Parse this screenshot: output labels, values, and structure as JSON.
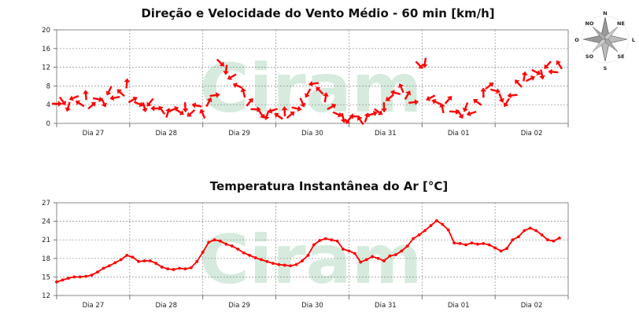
{
  "watermark": "Ciram",
  "compass": {
    "n": "N",
    "ne": "NE",
    "l": "L",
    "se": "SE",
    "s": "S",
    "so": "SO",
    "o": "O",
    "no": "NO"
  },
  "chart_data": [
    {
      "type": "line",
      "title": "Direção e Velocidade do Vento Médio - 60 min [km/h]",
      "xlabel": "",
      "ylabel": "",
      "categories": [
        "Dia 27",
        "Dia 28",
        "Dia 29",
        "Dia 30",
        "Dia 31",
        "Dia 01",
        "Dia 02"
      ],
      "xlim": [
        0,
        7
      ],
      "ylim": [
        0,
        20
      ],
      "yticks": [
        0,
        4,
        8,
        12,
        16,
        20
      ],
      "grid": true,
      "marker": "wind-direction-arrow",
      "color": "#ff0000",
      "x": [
        0.0,
        0.08,
        0.16,
        0.24,
        0.32,
        0.4,
        0.48,
        0.56,
        0.64,
        0.72,
        0.8,
        0.88,
        0.96,
        1.04,
        1.12,
        1.2,
        1.28,
        1.36,
        1.44,
        1.52,
        1.6,
        1.68,
        1.76,
        1.84,
        1.92,
        2.0,
        2.08,
        2.16,
        2.24,
        2.32,
        2.4,
        2.48,
        2.56,
        2.64,
        2.72,
        2.8,
        2.88,
        2.96,
        3.04,
        3.12,
        3.2,
        3.28,
        3.36,
        3.44,
        3.52,
        3.6,
        3.68,
        3.76,
        3.84,
        3.92,
        4.0,
        4.08,
        4.16,
        4.24,
        4.32,
        4.4,
        4.48,
        4.56,
        4.64,
        4.72,
        4.8,
        4.88,
        4.96,
        5.04,
        5.12,
        5.2,
        5.28,
        5.36,
        5.44,
        5.52,
        5.6,
        5.68,
        5.76,
        5.84,
        5.92,
        6.0,
        6.08,
        6.16,
        6.24,
        6.32,
        6.4,
        6.48,
        6.56,
        6.64,
        6.72,
        6.8,
        6.88
      ],
      "values": [
        4.2,
        4.8,
        3.6,
        5.5,
        4.2,
        6.0,
        3.8,
        5.2,
        4.5,
        7.0,
        5.5,
        6.5,
        8.5,
        5.0,
        4.2,
        3.5,
        4.5,
        3.2,
        2.8,
        2.2,
        3.0,
        2.5,
        3.5,
        2.2,
        3.8,
        2.0,
        4.5,
        6.0,
        13.0,
        11.5,
        10.0,
        8.0,
        6.5,
        4.5,
        3.0,
        2.0,
        1.8,
        2.8,
        1.5,
        2.5,
        1.8,
        3.2,
        4.5,
        6.5,
        8.5,
        7.0,
        5.5,
        3.5,
        2.0,
        1.2,
        0.8,
        1.5,
        0.6,
        1.2,
        2.0,
        2.5,
        3.5,
        5.5,
        6.5,
        7.5,
        6.0,
        4.5,
        12.5,
        13.0,
        5.5,
        4.5,
        3.2,
        5.0,
        2.5,
        2.0,
        3.5,
        2.2,
        4.5,
        6.5,
        8.0,
        7.0,
        5.5,
        4.5,
        6.0,
        8.5,
        10.0,
        9.5,
        11.0,
        10.5,
        12.5,
        11.0,
        12.5
      ]
    },
    {
      "type": "line",
      "title": "Temperatura Instantânea do Ar [°C]",
      "xlabel": "",
      "ylabel": "",
      "categories": [
        "Dia 27",
        "Dia 28",
        "Dia 29",
        "Dia 30",
        "Dia 31",
        "Dia 01",
        "Dia 02"
      ],
      "xlim": [
        0,
        7
      ],
      "ylim": [
        12,
        27
      ],
      "yticks": [
        12,
        15,
        18,
        21,
        24,
        27
      ],
      "grid": true,
      "marker": "circle",
      "color": "#ff0000",
      "x": [
        0.0,
        0.08,
        0.16,
        0.24,
        0.32,
        0.4,
        0.48,
        0.56,
        0.64,
        0.72,
        0.8,
        0.88,
        0.96,
        1.04,
        1.12,
        1.2,
        1.28,
        1.36,
        1.44,
        1.52,
        1.6,
        1.68,
        1.76,
        1.84,
        1.92,
        2.0,
        2.08,
        2.16,
        2.24,
        2.32,
        2.4,
        2.48,
        2.56,
        2.64,
        2.72,
        2.8,
        2.88,
        2.96,
        3.04,
        3.12,
        3.2,
        3.28,
        3.36,
        3.44,
        3.52,
        3.6,
        3.68,
        3.76,
        3.84,
        3.92,
        4.0,
        4.08,
        4.16,
        4.24,
        4.32,
        4.4,
        4.48,
        4.56,
        4.64,
        4.72,
        4.8,
        4.88,
        4.96,
        5.04,
        5.12,
        5.2,
        5.28,
        5.36,
        5.44,
        5.52,
        5.6,
        5.68,
        5.76,
        5.84,
        5.92,
        6.0,
        6.08,
        6.16,
        6.24,
        6.32,
        6.4,
        6.48,
        6.56,
        6.64,
        6.72,
        6.8,
        6.88
      ],
      "values": [
        14.2,
        14.5,
        14.8,
        15.0,
        15.0,
        15.1,
        15.3,
        15.8,
        16.4,
        16.8,
        17.3,
        17.8,
        18.5,
        18.2,
        17.5,
        17.6,
        17.6,
        17.2,
        16.6,
        16.3,
        16.2,
        16.4,
        16.3,
        16.5,
        17.5,
        19.0,
        20.6,
        21.0,
        20.8,
        20.3,
        20.0,
        19.5,
        18.9,
        18.5,
        18.1,
        17.8,
        17.5,
        17.2,
        17.0,
        16.9,
        16.8,
        17.0,
        17.6,
        18.5,
        20.2,
        20.9,
        21.2,
        21.0,
        20.8,
        19.5,
        19.2,
        18.8,
        17.4,
        17.8,
        18.3,
        18.0,
        17.6,
        18.4,
        18.6,
        19.2,
        20.0,
        21.2,
        21.8,
        22.5,
        23.3,
        24.1,
        23.5,
        22.6,
        20.5,
        20.4,
        20.2,
        20.5,
        20.3,
        20.4,
        20.2,
        19.7,
        19.2,
        19.6,
        21.0,
        21.5,
        22.5,
        22.9,
        22.5,
        21.8,
        21.0,
        20.8,
        21.3
      ]
    }
  ]
}
